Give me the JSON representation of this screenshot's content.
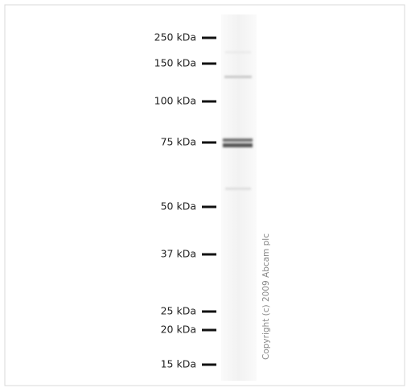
{
  "markers": [
    "250 kDa",
    "150 kDa",
    "100 kDa",
    "75 kDa",
    "50 kDa",
    "37 kDa",
    "25 kDa",
    "20 kDa",
    "15 kDa"
  ],
  "copyright": "Copyright (c) 2009 Abcam plc"
}
